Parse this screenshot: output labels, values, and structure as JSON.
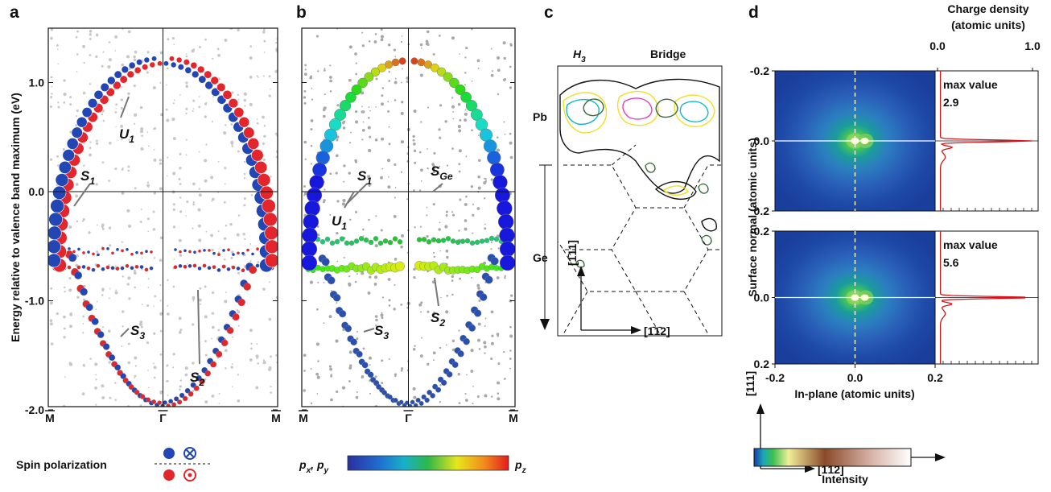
{
  "panel_a": {
    "label": "a",
    "y_title": "Energy relative to valence band maximum (eV)",
    "yticks": [
      {
        "value": 1,
        "label": "1.0"
      },
      {
        "value": 0,
        "label": "0.0"
      },
      {
        "value": -1,
        "label": "-1.0"
      },
      {
        "value": -2,
        "label": "-2.0"
      }
    ],
    "xticks": [
      "M",
      "Γ",
      "M"
    ],
    "annotations": [
      {
        "main": "U",
        "sub": "1"
      },
      {
        "main": "S",
        "sub": "1"
      },
      {
        "main": "S",
        "sub": "2"
      },
      {
        "main": "S",
        "sub": "3"
      }
    ],
    "legend_title": "Spin polarization"
  },
  "panel_b": {
    "label": "b",
    "xticks": [
      "M",
      "Γ",
      "M"
    ],
    "annotations": [
      {
        "main": "U",
        "sub": "1"
      },
      {
        "main": "S",
        "sub": "1"
      },
      {
        "main": "S",
        "sub": "Ge"
      },
      {
        "main": "S",
        "sub": "2"
      },
      {
        "main": "S",
        "sub": "3"
      }
    ],
    "colorbar": {
      "left_1": "p",
      "left_1_sub": "x",
      "left_sep": ", ",
      "left_2": "p",
      "left_2_sub": "y",
      "right": "p",
      "right_sub": "z"
    }
  },
  "panel_c": {
    "label": "c",
    "site_1": {
      "main": "H",
      "sub": "3"
    },
    "site_2": "Bridge",
    "layer_1": "Pb",
    "layer_2": "Ge",
    "dir_vertical": "[1̄11]",
    "dir_horizontal": "[1̄1̄2]"
  },
  "panel_d": {
    "label": "d",
    "top_axis_title": [
      "Charge density",
      "(atomic units)"
    ],
    "top_ticks": [
      {
        "value": 0,
        "label": "0.0"
      },
      {
        "value": 1,
        "label": "1.0"
      }
    ],
    "maps": [
      {
        "max_label": "max value",
        "max_value": "2.9"
      },
      {
        "max_label": "max value",
        "max_value": "5.6"
      }
    ],
    "y_title": "Surface normal (atomic units)",
    "yticks": [
      {
        "value": -0.2,
        "label": "-0.2"
      },
      {
        "value": 0,
        "label": "0.0"
      },
      {
        "value": 0.2,
        "label": "0.2"
      }
    ],
    "x_title": "In-plane (atomic units)",
    "xticks": [
      {
        "value": -0.2,
        "label": "-0.2"
      },
      {
        "value": 0,
        "label": "0.0"
      },
      {
        "value": 0.2,
        "label": "0.2"
      }
    ],
    "dir_vertical": "[111]",
    "dir_horizontal": "[1̄1̄2]",
    "colorbar_title": "Intensity"
  }
}
